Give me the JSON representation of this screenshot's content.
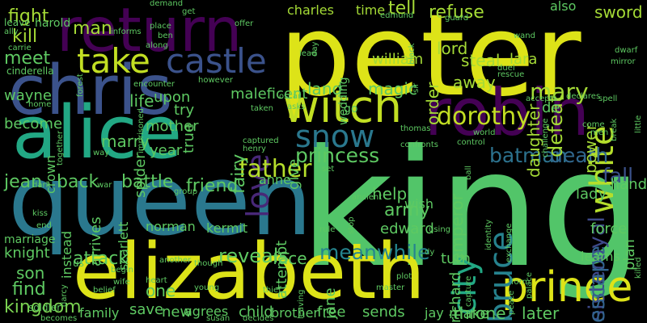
{
  "words": [
    {
      "text": "king",
      "color": "#52c569"
    },
    {
      "text": "peter",
      "color": "#dde318"
    },
    {
      "text": "queen",
      "color": "#2a788e"
    },
    {
      "text": "alice",
      "color": "#22a884"
    },
    {
      "text": "elizabeth",
      "color": "#dde318"
    },
    {
      "text": "chris",
      "color": "#3b528b"
    },
    {
      "text": "return",
      "color": "#440154"
    },
    {
      "text": "robin",
      "color": "#440154"
    },
    {
      "text": "witch",
      "color": "#c2df23"
    },
    {
      "text": "prince",
      "color": "#dde318"
    },
    {
      "text": "castle",
      "color": "#3b528b"
    },
    {
      "text": "take",
      "color": "#c2df23"
    },
    {
      "text": "white",
      "color": "#b5de2b"
    },
    {
      "text": "love",
      "color": "#482878"
    },
    {
      "text": "snow",
      "color": "#2a788e"
    },
    {
      "text": "bruce",
      "color": "#26828e"
    },
    {
      "text": "city",
      "color": "#22a884"
    },
    {
      "text": "father",
      "color": "#b5de2b"
    },
    {
      "text": "dorothy",
      "color": "#c2df23"
    },
    {
      "text": "mary",
      "color": "#a5db36"
    },
    {
      "text": "princess",
      "color": "#5ec962"
    },
    {
      "text": "batman",
      "color": "#2c728e"
    },
    {
      "text": "death",
      "color": "#31688e"
    },
    {
      "text": "fall",
      "color": "#3b528b"
    },
    {
      "text": "meanwhile",
      "color": "#25858e"
    },
    {
      "text": "sisteroyal",
      "color": "#3e4989"
    },
    {
      "text": "escape",
      "color": "#32648e"
    },
    {
      "text": "kingdom",
      "color": "#7ad151"
    },
    {
      "text": "fight",
      "color": "#a5db36"
    },
    {
      "text": "kill",
      "color": "#a5db36"
    },
    {
      "text": "meet",
      "color": "#5ec962"
    },
    {
      "text": "man",
      "color": "#a5db36"
    },
    {
      "text": "charles",
      "color": "#a5db36"
    },
    {
      "text": "time",
      "color": "#a5db36"
    },
    {
      "text": "tell",
      "color": "#a5db36"
    },
    {
      "text": "refuse",
      "color": "#a5db36"
    },
    {
      "text": "sword",
      "color": "#a5db36"
    },
    {
      "text": "lord",
      "color": "#a5db36"
    },
    {
      "text": "steal",
      "color": "#a5db36"
    },
    {
      "text": "william",
      "color": "#a5db36"
    },
    {
      "text": "lara",
      "color": "#a5db36"
    },
    {
      "text": "order",
      "color": "#a5db36"
    },
    {
      "text": "away",
      "color": "#a5db36"
    },
    {
      "text": "defeat",
      "color": "#a5db36"
    },
    {
      "text": "power",
      "color": "#a5db36"
    },
    {
      "text": "daughter",
      "color": "#a5db36"
    },
    {
      "text": "maleficent",
      "color": "#5ec962"
    },
    {
      "text": "land",
      "color": "#5ec962"
    },
    {
      "text": "magic",
      "color": "#5ec962"
    },
    {
      "text": "life",
      "color": "#5ec962"
    },
    {
      "text": "wayne",
      "color": "#5ec962"
    },
    {
      "text": "become",
      "color": "#5ec962"
    },
    {
      "text": "marry",
      "color": "#5ec962"
    },
    {
      "text": "mother",
      "color": "#5ec962"
    },
    {
      "text": "year",
      "color": "#5ec962"
    },
    {
      "text": "true",
      "color": "#5ec962"
    },
    {
      "text": "fairy",
      "color": "#5ec962"
    },
    {
      "text": "give",
      "color": "#5ec962"
    },
    {
      "text": "upon",
      "color": "#5ec962"
    },
    {
      "text": "try",
      "color": "#5ec962"
    },
    {
      "text": "spider",
      "color": "#5ec962"
    },
    {
      "text": "jean",
      "color": "#5ec962"
    },
    {
      "text": "back",
      "color": "#5ec962"
    },
    {
      "text": "battle",
      "color": "#5ec962"
    },
    {
      "text": "friend",
      "color": "#5ec962"
    },
    {
      "text": "anne",
      "color": "#5ec962"
    },
    {
      "text": "help",
      "color": "#5ec962"
    },
    {
      "text": "army",
      "color": "#5ec962"
    },
    {
      "text": "emperor",
      "color": "#5ec962"
    },
    {
      "text": "lady",
      "color": "#5ec962"
    },
    {
      "text": "hand",
      "color": "#5ec962"
    },
    {
      "text": "plan",
      "color": "#5ec962"
    },
    {
      "text": "force",
      "color": "#5ec962"
    },
    {
      "text": "attempt",
      "color": "#5ec962"
    },
    {
      "text": "edward",
      "color": "#5ec962"
    },
    {
      "text": "reveals",
      "color": "#5ec962"
    },
    {
      "text": "attack",
      "color": "#5ec962"
    },
    {
      "text": "knight",
      "color": "#5ec962"
    },
    {
      "text": "son",
      "color": "#5ec962"
    },
    {
      "text": "find",
      "color": "#5ec962"
    },
    {
      "text": "one",
      "color": "#5ec962"
    },
    {
      "text": "face",
      "color": "#5ec962"
    },
    {
      "text": "jane",
      "color": "#5ec962"
    },
    {
      "text": "turn",
      "color": "#5ec962"
    },
    {
      "text": "richard",
      "color": "#5ec962"
    },
    {
      "text": "learns",
      "color": "#5ec962"
    },
    {
      "text": "throne",
      "color": "#5ec962"
    },
    {
      "text": "later",
      "color": "#5ec962"
    },
    {
      "text": "save",
      "color": "#5ec962"
    },
    {
      "text": "new",
      "color": "#5ec962"
    },
    {
      "text": "agrees",
      "color": "#5ec962"
    },
    {
      "text": "child",
      "color": "#5ec962"
    },
    {
      "text": "brother",
      "color": "#5ec962"
    },
    {
      "text": "free",
      "color": "#5ec962"
    },
    {
      "text": "sends",
      "color": "#5ec962"
    },
    {
      "text": "jay",
      "color": "#5ec962"
    },
    {
      "text": "make",
      "color": "#5ec962"
    },
    {
      "text": "family",
      "color": "#5ec962"
    },
    {
      "text": "wish",
      "color": "#5ec962"
    },
    {
      "text": "crown",
      "color": "#5ec962"
    },
    {
      "text": "scarlett",
      "color": "#5ec962"
    },
    {
      "text": "arrives",
      "color": "#5ec962"
    },
    {
      "text": "instead",
      "color": "#5ec962"
    },
    {
      "text": "norman",
      "color": "#5ec962"
    },
    {
      "text": "kermit",
      "color": "#5ec962"
    },
    {
      "text": "marriage",
      "color": "#5ec962"
    },
    {
      "text": "go",
      "color": "#5ec962"
    },
    {
      "text": "wedding",
      "color": "#5ec962"
    },
    {
      "text": "also",
      "color": "#5ec962"
    },
    {
      "text": "de",
      "color": "#5ec962"
    },
    {
      "text": "us",
      "color": "#5ec962"
    },
    {
      "text": "harold",
      "color": "#5ec962"
    },
    {
      "text": "leave",
      "color": "#5ec962"
    },
    {
      "text": "ally",
      "color": "#5ec962"
    },
    {
      "text": "cinderella",
      "color": "#5ec962"
    },
    {
      "text": "carrie",
      "color": "#5ec962"
    },
    {
      "text": "home",
      "color": "#5ec962"
    },
    {
      "text": "soldier",
      "color": "#5ec962"
    },
    {
      "text": "becomes",
      "color": "#5ec962"
    },
    {
      "text": "dark",
      "color": "#5ec962"
    },
    {
      "text": "kiss",
      "color": "#5ec962"
    },
    {
      "text": "end",
      "color": "#5ec962"
    },
    {
      "text": "together",
      "color": "#5ec962"
    },
    {
      "text": "way",
      "color": "#5ec962"
    },
    {
      "text": "war",
      "color": "#5ec962"
    },
    {
      "text": "demand",
      "color": "#5ec962"
    },
    {
      "text": "get",
      "color": "#5ec962"
    },
    {
      "text": "informs",
      "color": "#5ec962"
    },
    {
      "text": "place",
      "color": "#5ec962"
    },
    {
      "text": "ben",
      "color": "#5ec962"
    },
    {
      "text": "along",
      "color": "#5ec962"
    },
    {
      "text": "offer",
      "color": "#5ec962"
    },
    {
      "text": "edmund",
      "color": "#5ec962"
    },
    {
      "text": "guard",
      "color": "#5ec962"
    },
    {
      "text": "wand",
      "color": "#5ec962"
    },
    {
      "text": "dwarf",
      "color": "#5ec962"
    },
    {
      "text": "mirror",
      "color": "#5ec962"
    },
    {
      "text": "duel",
      "color": "#5ec962"
    },
    {
      "text": "rescue",
      "color": "#5ec962"
    },
    {
      "text": "sir",
      "color": "#5ec962"
    },
    {
      "text": "black",
      "color": "#5ec962"
    },
    {
      "text": "lead",
      "color": "#5ec962"
    },
    {
      "text": "day",
      "color": "#5ec962"
    },
    {
      "text": "forest",
      "color": "#5ec962"
    },
    {
      "text": "however",
      "color": "#5ec962"
    },
    {
      "text": "encounter",
      "color": "#5ec962"
    },
    {
      "text": "imprisoned",
      "color": "#5ec962"
    },
    {
      "text": "captured",
      "color": "#5ec962"
    },
    {
      "text": "henry",
      "color": "#5ec962"
    },
    {
      "text": "taken",
      "color": "#5ec962"
    },
    {
      "text": "oscar",
      "color": "#5ec962"
    },
    {
      "text": "asks",
      "color": "#5ec962"
    },
    {
      "text": "declares",
      "color": "#5ec962"
    },
    {
      "text": "accepts",
      "color": "#5ec962"
    },
    {
      "text": "spell",
      "color": "#5ec962"
    },
    {
      "text": "little",
      "color": "#5ec962"
    },
    {
      "text": "break",
      "color": "#5ec962"
    },
    {
      "text": "come",
      "color": "#5ec962"
    },
    {
      "text": "men",
      "color": "#5ec962"
    },
    {
      "text": "challenge",
      "color": "#5ec962"
    },
    {
      "text": "world",
      "color": "#5ec962"
    },
    {
      "text": "control",
      "color": "#5ec962"
    },
    {
      "text": "thomas",
      "color": "#5ec962"
    },
    {
      "text": "confronts",
      "color": "#5ec962"
    },
    {
      "text": "set",
      "color": "#5ec962"
    },
    {
      "text": "ancient",
      "color": "#5ec962"
    },
    {
      "text": "stop",
      "color": "#5ec962"
    },
    {
      "text": "ball",
      "color": "#5ec962"
    },
    {
      "text": "identity",
      "color": "#5ec962"
    },
    {
      "text": "exchange",
      "color": "#5ec962"
    },
    {
      "text": "group",
      "color": "#5ec962"
    },
    {
      "text": "rule",
      "color": "#5ec962"
    },
    {
      "text": "using",
      "color": "#5ec962"
    },
    {
      "text": "dy",
      "color": "#5ec962"
    },
    {
      "text": "plot",
      "color": "#5ec962"
    },
    {
      "text": "capture",
      "color": "#5ec962"
    },
    {
      "text": "palace",
      "color": "#5ec962"
    },
    {
      "text": "peace",
      "color": "#5ec962"
    },
    {
      "text": "form",
      "color": "#5ec962"
    },
    {
      "text": "killed",
      "color": "#5ec962"
    },
    {
      "text": "another",
      "color": "#5ec962"
    },
    {
      "text": "though",
      "color": "#5ec962"
    },
    {
      "text": "begin",
      "color": "#5ec962"
    },
    {
      "text": "darcy",
      "color": "#5ec962"
    },
    {
      "text": "wife",
      "color": "#5ec962"
    },
    {
      "text": "belief",
      "color": "#5ec962"
    },
    {
      "text": "heart",
      "color": "#5ec962"
    },
    {
      "text": "young",
      "color": "#5ec962"
    },
    {
      "text": "susan",
      "color": "#5ec962"
    },
    {
      "text": "thief",
      "color": "#5ec962"
    },
    {
      "text": "decides",
      "color": "#5ec962"
    },
    {
      "text": "leaving",
      "color": "#5ec962"
    },
    {
      "text": "master",
      "color": "#5ec962"
    }
  ]
}
